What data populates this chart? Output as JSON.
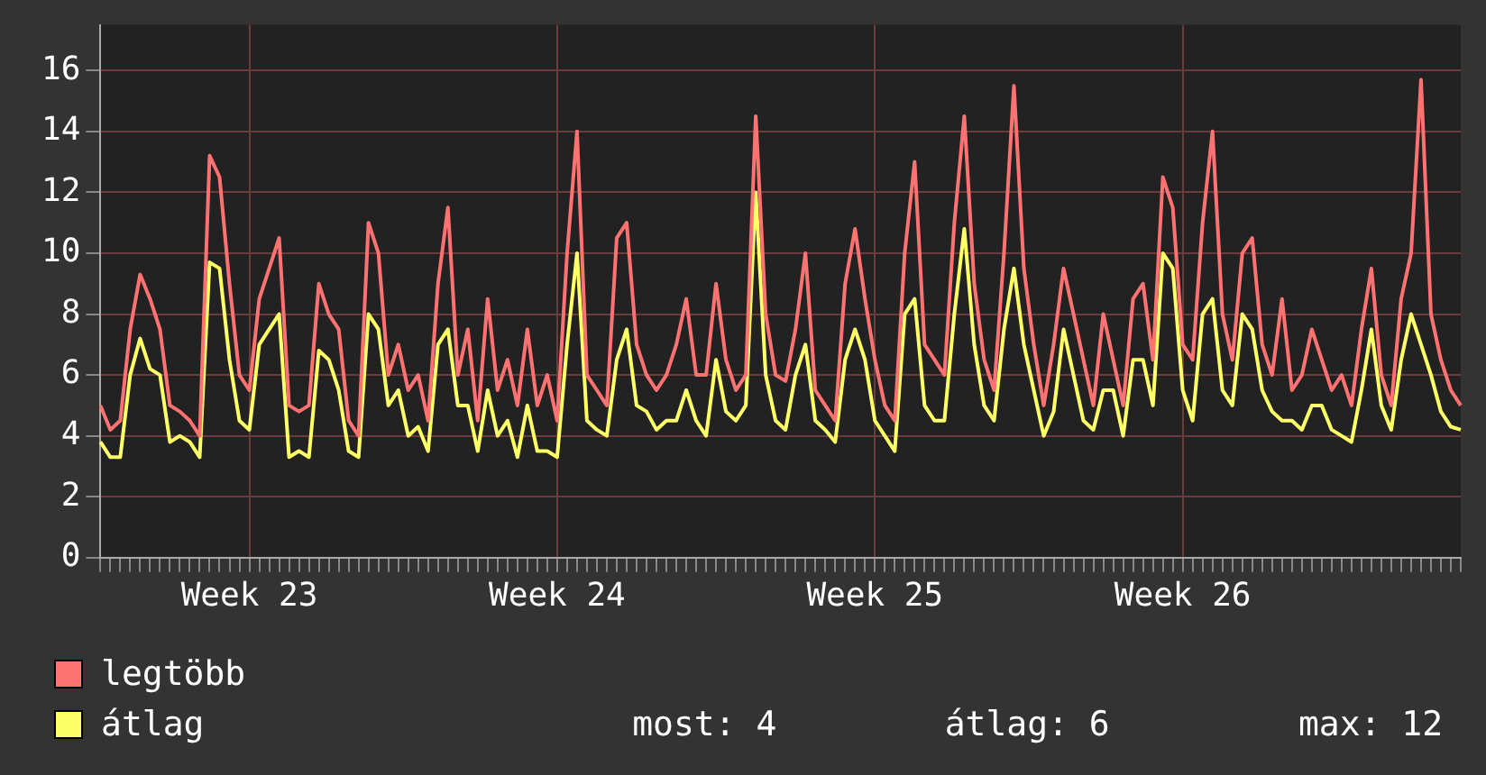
{
  "chart_data": {
    "type": "line",
    "categories": [
      null,
      null,
      null,
      null,
      null,
      null,
      null,
      null,
      null,
      null,
      null,
      null,
      null,
      null,
      null,
      "Week 23",
      null,
      null,
      null,
      null,
      null,
      null,
      null,
      null,
      null,
      null,
      null,
      null,
      null,
      null,
      null,
      null,
      null,
      null,
      null,
      null,
      null,
      null,
      null,
      null,
      null,
      null,
      null,
      null,
      null,
      null,
      "Week 24",
      null,
      null,
      null,
      null,
      null,
      null,
      null,
      null,
      null,
      null,
      null,
      null,
      null,
      null,
      null,
      null,
      null,
      null,
      null,
      null,
      null,
      null,
      null,
      null,
      null,
      null,
      null,
      null,
      null,
      null,
      null,
      "Week 25",
      null,
      null,
      null,
      null,
      null,
      null,
      null,
      null,
      null,
      null,
      null,
      null,
      null,
      null,
      null,
      null,
      null,
      null,
      null,
      null,
      null,
      null,
      null,
      null,
      null,
      null,
      null,
      null,
      null,
      null,
      "Week 26",
      null,
      null,
      null,
      null,
      null,
      null,
      null,
      null,
      null,
      null,
      null,
      null,
      null,
      null,
      null,
      null,
      null,
      null,
      null,
      null,
      null,
      null,
      null,
      null,
      null,
      null,
      null,
      null
    ],
    "series": [
      {
        "name": "legtöbb",
        "color": "#ff7272",
        "values": [
          5,
          4.2,
          4.5,
          7.5,
          9.3,
          8.5,
          7.5,
          5,
          4.8,
          4.5,
          4,
          13.2,
          12.5,
          9,
          6,
          5.5,
          8.5,
          9.5,
          10.5,
          5,
          4.8,
          5,
          9,
          8,
          7.5,
          4.5,
          4,
          11,
          10,
          6,
          7,
          5.5,
          6,
          4.5,
          9,
          11.5,
          6,
          7.5,
          4.5,
          8.5,
          5.5,
          6.5,
          5,
          7.5,
          5,
          6,
          4.5,
          10,
          14,
          6,
          5.5,
          5,
          10.5,
          11,
          7,
          6,
          5.5,
          6,
          7,
          8.5,
          6,
          6,
          9,
          6.5,
          5.5,
          6,
          14.5,
          8,
          6,
          5.8,
          7.5,
          10,
          5.5,
          5,
          4.5,
          9,
          10.8,
          8.5,
          6.5,
          5,
          4.5,
          10,
          13,
          7,
          6.5,
          6,
          11,
          14.5,
          9,
          6.5,
          5.5,
          10,
          15.5,
          9.5,
          7,
          5,
          7,
          9.5,
          8,
          6.5,
          5,
          8,
          6.5,
          5,
          8.5,
          9,
          6.5,
          12.5,
          11.5,
          7,
          6.5,
          11,
          14,
          8,
          6.5,
          10,
          10.5,
          7,
          6,
          8.5,
          5.5,
          6,
          7.5,
          6.5,
          5.5,
          6,
          5,
          7.5,
          9.5,
          6,
          5,
          8.5,
          10,
          15.7,
          8,
          6.5,
          5.5,
          5
        ]
      },
      {
        "name": "átlag",
        "color": "#ffff66",
        "values": [
          3.8,
          3.3,
          3.3,
          6,
          7.2,
          6.2,
          6,
          3.8,
          4,
          3.8,
          3.3,
          9.7,
          9.5,
          6.5,
          4.5,
          4.2,
          7,
          7.5,
          8,
          3.3,
          3.5,
          3.3,
          6.8,
          6.5,
          5.5,
          3.5,
          3.3,
          8,
          7.5,
          5,
          5.5,
          4,
          4.3,
          3.5,
          7,
          7.5,
          5,
          5,
          3.5,
          5.5,
          4,
          4.5,
          3.3,
          5,
          3.5,
          3.5,
          3.3,
          7,
          10,
          4.5,
          4.2,
          4,
          6.5,
          7.5,
          5,
          4.8,
          4.2,
          4.5,
          4.5,
          5.5,
          4.5,
          4,
          6.5,
          4.8,
          4.5,
          5,
          12,
          6,
          4.5,
          4.2,
          6,
          7,
          4.5,
          4.2,
          3.8,
          6.5,
          7.5,
          6.5,
          4.5,
          4,
          3.5,
          8,
          8.5,
          5,
          4.5,
          4.5,
          8,
          10.8,
          7,
          5,
          4.5,
          7.5,
          9.5,
          7,
          5.5,
          4,
          4.8,
          7.5,
          6,
          4.5,
          4.2,
          5.5,
          5.5,
          4,
          6.5,
          6.5,
          5,
          10,
          9.5,
          5.5,
          4.5,
          8,
          8.5,
          5.5,
          5,
          8,
          7.5,
          5.5,
          4.8,
          4.5,
          4.5,
          4.2,
          5,
          5,
          4.2,
          4,
          3.8,
          5.5,
          7.5,
          5,
          4.2,
          6.5,
          8,
          7,
          6,
          4.8,
          4.3,
          4.2
        ]
      }
    ],
    "ylim": [
      0,
      17.5
    ],
    "yticks": [
      0,
      2,
      4,
      6,
      8,
      10,
      12,
      14,
      16
    ],
    "grid": true,
    "legend": "bottom",
    "annotations": [
      "most: 4",
      "átlag: 6",
      "max: 12"
    ]
  }
}
